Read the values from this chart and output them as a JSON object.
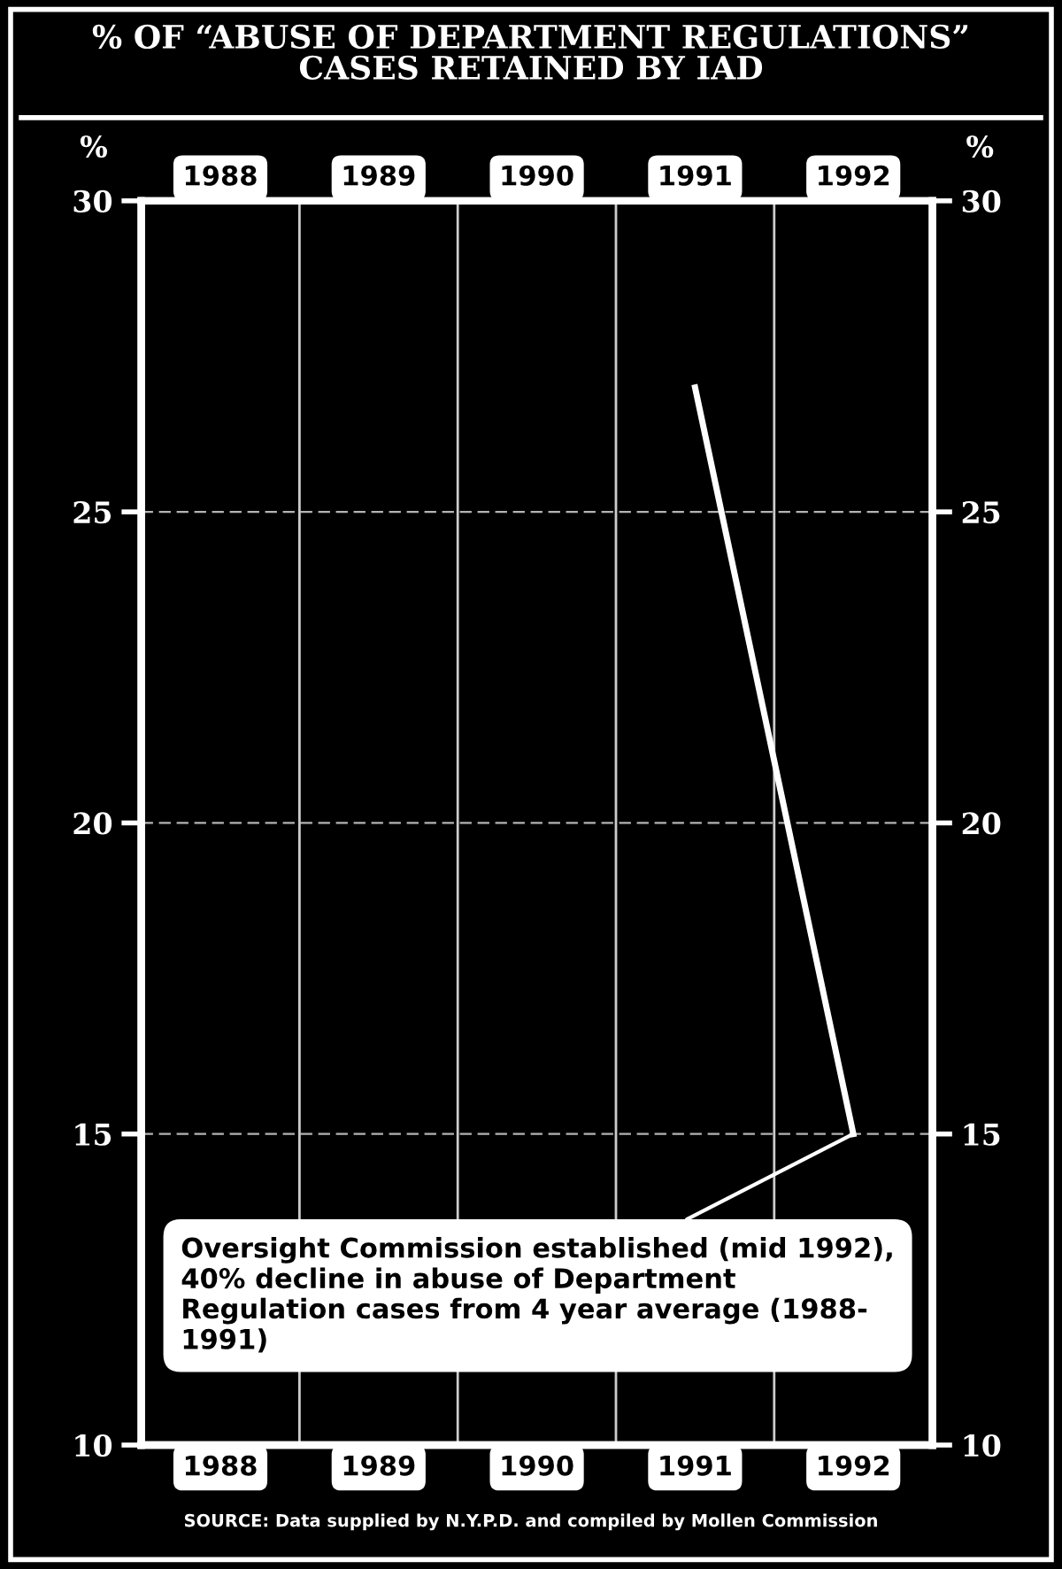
{
  "chart_data": {
    "type": "line",
    "title": "% OF “ABUSE OF DEPARTMENT REGULATIONS”\nCASES RETAINED BY IAD",
    "ylabel": "%",
    "y2label": "%",
    "categories": [
      "1988",
      "1989",
      "1990",
      "1991",
      "1992"
    ],
    "series": [
      {
        "color": "#ffffff",
        "values": [
          null,
          null,
          null,
          27,
          15
        ]
      }
    ],
    "ylim": [
      10,
      30
    ],
    "yticks": [
      10,
      15,
      20,
      25,
      30
    ],
    "y2lim": [
      10,
      30
    ],
    "y2ticks": [
      10,
      15,
      20,
      25,
      30
    ],
    "grid": "y",
    "marker": "none",
    "line_style": "solid",
    "annotations": [
      {
        "text": "Oversight Commission established (mid 1992),\n40% decline in abuse of Department\nRegulation cases from 4 year average (1988-\n1991)",
        "x": "1992",
        "y": 15
      },
      "SOURCE: Data supplied by N.Y.P.D. and compiled by Mollen Commission"
    ]
  }
}
